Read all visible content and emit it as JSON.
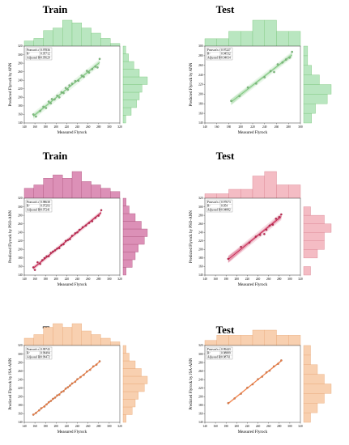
{
  "chart_data": [
    {
      "type": "scatter",
      "title": "Train",
      "xlabel": "Measured Flyrock",
      "ylabel": "Predicted Flyrock by ANN",
      "xlim": [
        140,
        320
      ],
      "ylim": [
        140,
        320
      ],
      "xticks": [
        "140",
        "160",
        "180",
        "200",
        "220",
        "240",
        "260",
        "280",
        "300",
        "320"
      ],
      "yticks": [
        "140",
        "160",
        "180",
        "200",
        "220",
        "240",
        "260",
        "280",
        "300",
        "320"
      ],
      "color": "#7bc67b",
      "hist_color": "#b9e6c0",
      "hist_edge": "#7bc67b",
      "stats": [
        {
          "label": "Pearson's r",
          "value": "0.97836"
        },
        {
          "label": "R²",
          "value": "0.95712"
        },
        {
          "label": "Adjusted R²",
          "value": "0.95629"
        }
      ],
      "x": [
        157,
        162,
        170,
        176,
        181,
        186,
        190,
        192,
        197,
        202,
        206,
        210,
        214,
        218,
        222,
        225,
        230,
        236,
        242,
        248,
        252,
        258,
        262,
        268,
        274,
        278,
        282
      ],
      "y": [
        160,
        155,
        168,
        178,
        175,
        190,
        186,
        196,
        195,
        204,
        200,
        212,
        210,
        222,
        218,
        228,
        232,
        238,
        239,
        251,
        248,
        262,
        258,
        266,
        272,
        270,
        290
      ],
      "xhist": [
        2,
        3,
        6,
        7,
        10,
        9,
        7,
        5,
        3,
        1
      ],
      "yhist": [
        1,
        3,
        5,
        6,
        7,
        9,
        6,
        4,
        2,
        1
      ]
    },
    {
      "type": "scatter",
      "title": "Test",
      "xlabel": "Measured Flyrock",
      "ylabel": "Predicted Flyrock by ANN",
      "xlim": [
        140,
        300
      ],
      "ylim": [
        140,
        300
      ],
      "xticks": [
        "140",
        "160",
        "180",
        "200",
        "220",
        "240",
        "260",
        "280",
        "300"
      ],
      "yticks": [
        "140",
        "160",
        "180",
        "200",
        "220",
        "240",
        "260",
        "280",
        "300"
      ],
      "color": "#7bc67b",
      "hist_color": "#b9e6c0",
      "hist_edge": "#7bc67b",
      "stats": [
        {
          "label": "Pearson's r",
          "value": "0.97227"
        },
        {
          "label": "R²",
          "value": "0.94532"
        },
        {
          "label": "Adjusted R²",
          "value": "0.94034"
        }
      ],
      "x": [
        184,
        198,
        212,
        226,
        240,
        250,
        256,
        262,
        270,
        276,
        282,
        286
      ],
      "y": [
        186,
        196,
        214,
        222,
        235,
        248,
        246,
        262,
        266,
        272,
        276,
        288
      ],
      "xhist": [
        2,
        2,
        4,
        4,
        7,
        7,
        4,
        4
      ],
      "yhist": [
        2,
        3,
        6,
        7,
        4,
        2,
        1,
        1
      ]
    },
    {
      "type": "scatter",
      "title": "Train",
      "xlabel": "Measured Flyrock",
      "ylabel": "Predicted Flyrock by PSO-ANN",
      "xlim": [
        140,
        320
      ],
      "ylim": [
        140,
        320
      ],
      "xticks": [
        "140",
        "160",
        "180",
        "200",
        "220",
        "240",
        "260",
        "280",
        "300",
        "320"
      ],
      "yticks": [
        "140",
        "160",
        "180",
        "200",
        "220",
        "240",
        "260",
        "280",
        "300",
        "320"
      ],
      "color": "#c71e4c",
      "hist_color": "#dc90b7",
      "hist_edge": "#b0587f",
      "stats": [
        {
          "label": "Pearson's r",
          "value": "0.98638"
        },
        {
          "label": "R²",
          "value": "0.97293"
        },
        {
          "label": "Adjusted R²",
          "value": "0.97241"
        }
      ],
      "x": [
        157,
        160,
        165,
        170,
        174,
        178,
        182,
        186,
        190,
        194,
        198,
        202,
        206,
        210,
        214,
        218,
        222,
        226,
        230,
        236,
        240,
        244,
        250,
        256,
        262,
        268,
        274,
        280,
        285
      ],
      "y": [
        158,
        152,
        170,
        166,
        175,
        180,
        184,
        184,
        192,
        195,
        198,
        202,
        203,
        210,
        212,
        220,
        222,
        224,
        232,
        238,
        240,
        246,
        252,
        256,
        262,
        266,
        274,
        279,
        292
      ],
      "xhist": [
        3,
        4,
        6,
        7,
        6,
        8,
        5,
        4,
        3,
        2
      ],
      "yhist": [
        1,
        3,
        4,
        5,
        7,
        8,
        6,
        4,
        2,
        1
      ]
    },
    {
      "type": "scatter",
      "title": "Test",
      "xlabel": "Measured Flyrock",
      "ylabel": "Predicted Flyrock by PSO-ANN",
      "xlim": [
        140,
        320
      ],
      "ylim": [
        140,
        320
      ],
      "xticks": [
        "140",
        "160",
        "180",
        "200",
        "220",
        "240",
        "260",
        "280",
        "300",
        "320"
      ],
      "yticks": [
        "140",
        "160",
        "180",
        "200",
        "220",
        "240",
        "260",
        "280",
        "300",
        "320"
      ],
      "color": "#c71e4c",
      "hist_color": "#f4bcc4",
      "hist_edge": "#d98090",
      "stats": [
        {
          "label": "Pearson's r",
          "value": "0.97673"
        },
        {
          "label": "R²",
          "value": "0.954"
        },
        {
          "label": "Adjusted R²",
          "value": "0.94882"
        }
      ],
      "x": [
        184,
        208,
        224,
        236,
        244,
        252,
        256,
        262,
        268,
        274,
        280,
        284
      ],
      "y": [
        178,
        206,
        216,
        230,
        234,
        236,
        246,
        256,
        258,
        272,
        276,
        282
      ],
      "xhist": [
        1,
        1,
        2,
        2,
        5,
        6,
        3,
        3
      ],
      "yhist": [
        1,
        0,
        2,
        3,
        3,
        4,
        3,
        1,
        0
      ]
    },
    {
      "type": "scatter",
      "title": "Train",
      "xlabel": "Measured Flyrock",
      "ylabel": "Predicted Flyrock by JSA-ANN",
      "xlim": [
        140,
        320
      ],
      "ylim": [
        140,
        320
      ],
      "xticks": [
        "140",
        "160",
        "180",
        "200",
        "220",
        "240",
        "260",
        "280",
        "300",
        "320"
      ],
      "yticks": [
        "140",
        "160",
        "180",
        "200",
        "220",
        "240",
        "260",
        "280",
        "300",
        "320"
      ],
      "color": "#f07b3f",
      "hist_color": "#f8d0b0",
      "hist_edge": "#e8a878",
      "stats": [
        {
          "label": "Pearson's r",
          "value": "0.99743"
        },
        {
          "label": "R²",
          "value": "0.99494"
        },
        {
          "label": "Adjusted R²",
          "value": "0.99472"
        }
      ],
      "x": [
        157,
        162,
        168,
        172,
        178,
        182,
        186,
        190,
        194,
        198,
        202,
        206,
        210,
        214,
        218,
        222,
        226,
        230,
        236,
        240,
        246,
        252,
        258,
        264,
        270,
        276,
        282
      ],
      "y": [
        158,
        162,
        168,
        173,
        177,
        182,
        187,
        190,
        195,
        198,
        203,
        205,
        211,
        213,
        219,
        222,
        226,
        231,
        235,
        241,
        246,
        251,
        259,
        263,
        271,
        275,
        283
      ],
      "xhist": [
        2,
        3,
        5,
        6,
        5,
        6,
        4,
        3,
        2,
        1
      ],
      "yhist": [
        1,
        3,
        4,
        5,
        7,
        8,
        6,
        4,
        2,
        1
      ]
    },
    {
      "type": "scatter",
      "title": "Test",
      "xlabel": "Measured Flyrock",
      "ylabel": "Predicted Flyrock by JSA-ANN",
      "xlim": [
        140,
        320
      ],
      "ylim": [
        140,
        320
      ],
      "xticks": [
        "140",
        "160",
        "180",
        "200",
        "220",
        "240",
        "260",
        "280",
        "300",
        "320"
      ],
      "yticks": [
        "140",
        "160",
        "180",
        "200",
        "220",
        "240",
        "260",
        "280",
        "300",
        "320"
      ],
      "color": "#f07b3f",
      "hist_color": "#f8d0b0",
      "hist_edge": "#e8a878",
      "stats": [
        {
          "label": "Pearson's r",
          "value": "0.99443"
        },
        {
          "label": "R²",
          "value": "0.98889"
        },
        {
          "label": "Adjusted R²",
          "value": "0.98761"
        }
      ],
      "x": [
        184,
        196,
        208,
        220,
        230,
        240,
        248,
        256,
        262,
        270,
        278,
        284
      ],
      "y": [
        185,
        196,
        207,
        221,
        229,
        241,
        247,
        257,
        261,
        271,
        277,
        285
      ],
      "xhist": [
        1,
        2,
        2,
        2,
        3,
        3,
        2,
        2
      ],
      "yhist": [
        1,
        2,
        3,
        4,
        3,
        2,
        1,
        1
      ]
    }
  ]
}
